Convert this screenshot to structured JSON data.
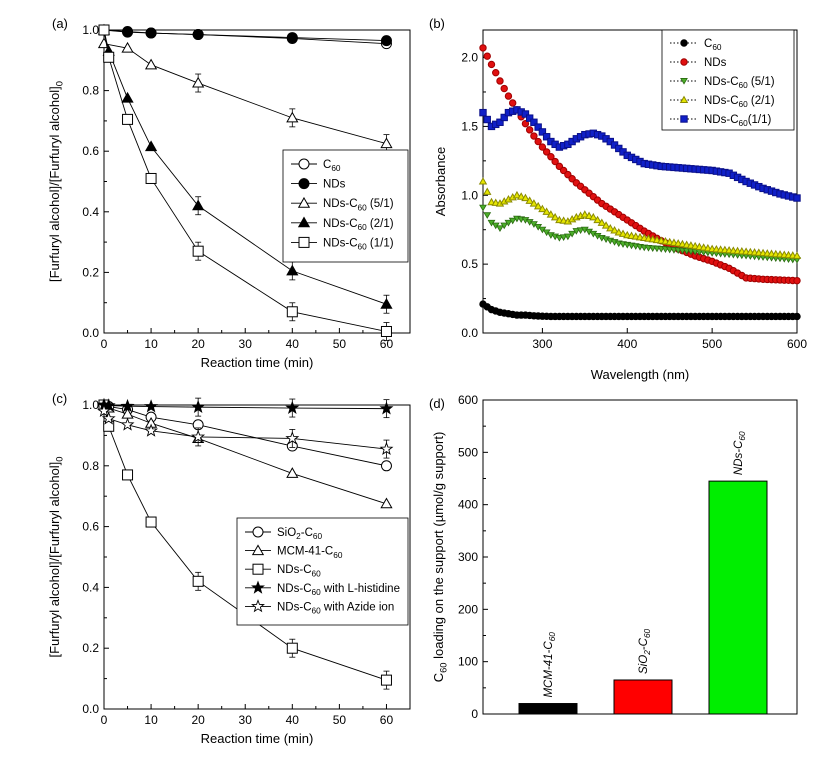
{
  "chart_data": [
    {
      "panel": "(a)",
      "type": "line",
      "xlabel": "Reaction time (min)",
      "ylabel": "[Furfuryl alcohol]/[Furfuryl alcohol]",
      "ylabel_sub": "0",
      "xlim": [
        0,
        65
      ],
      "ylim": [
        0,
        1.0
      ],
      "xticks": [
        "0",
        "10",
        "20",
        "30",
        "40",
        "50",
        "60"
      ],
      "yticks": [
        "0.0",
        "0.2",
        "0.4",
        "0.6",
        "0.8",
        "1.0"
      ],
      "legend_position": "center-right",
      "x": [
        0,
        5,
        10,
        20,
        40,
        60
      ],
      "series": [
        {
          "name": "C",
          "sub": "60",
          "suffix": "",
          "marker": "circle-open",
          "x": [
            0,
            5,
            10,
            20,
            40,
            60
          ],
          "values": [
            1.0,
            0.993,
            0.99,
            0.985,
            0.972,
            0.955
          ]
        },
        {
          "name": "NDs",
          "sub": "",
          "suffix": "",
          "marker": "circle-filled",
          "x": [
            0,
            5,
            10,
            20,
            40,
            60
          ],
          "values": [
            1.0,
            0.995,
            0.99,
            0.985,
            0.975,
            0.965
          ]
        },
        {
          "name": "NDs-C",
          "sub": "60",
          "suffix": " (5/1)",
          "marker": "triangle-open",
          "x": [
            0,
            5,
            10,
            20,
            40,
            60
          ],
          "values": [
            0.955,
            0.94,
            0.885,
            0.825,
            0.71,
            0.625
          ]
        },
        {
          "name": "NDs-C",
          "sub": "60",
          "suffix": " (2/1)",
          "marker": "triangle-filled",
          "x": [
            0,
            1,
            5,
            10,
            20,
            40,
            60
          ],
          "values": [
            1.0,
            0.93,
            0.775,
            0.615,
            0.42,
            0.205,
            0.095
          ]
        },
        {
          "name": "NDs-C",
          "sub": "60",
          "suffix": " (1/1)",
          "marker": "square-open",
          "x": [
            0,
            1,
            5,
            10,
            20,
            40,
            60
          ],
          "values": [
            1.0,
            0.91,
            0.705,
            0.51,
            0.27,
            0.07,
            0.005
          ]
        }
      ]
    },
    {
      "panel": "(b)",
      "type": "scatter",
      "xlabel": "Wavelength (nm)",
      "ylabel": "Absorbance",
      "xlim": [
        230,
        600
      ],
      "ylim": [
        0,
        2.2
      ],
      "xticks": [
        "300",
        "400",
        "500",
        "600"
      ],
      "yticks": [
        "0.0",
        "0.5",
        "1.0",
        "1.5",
        "2.0"
      ],
      "legend_position": "top-right",
      "wavelengths": [
        230,
        240,
        250,
        260,
        270,
        280,
        290,
        300,
        310,
        320,
        330,
        340,
        350,
        360,
        370,
        380,
        390,
        400,
        420,
        440,
        460,
        480,
        500,
        520,
        540,
        560,
        580,
        600
      ],
      "series": [
        {
          "name": "C",
          "sub": "60",
          "suffix": "",
          "marker": "circle",
          "color": "#000000",
          "values": [
            0.21,
            0.17,
            0.15,
            0.14,
            0.13,
            0.13,
            0.125,
            0.122,
            0.12,
            0.12,
            0.12,
            0.12,
            0.12,
            0.12,
            0.12,
            0.12,
            0.12,
            0.12,
            0.12,
            0.12,
            0.12,
            0.12,
            0.12,
            0.12,
            0.12,
            0.12,
            0.12,
            0.12
          ]
        },
        {
          "name": "NDs",
          "sub": "",
          "suffix": "",
          "marker": "circle",
          "color": "#e01010",
          "values": [
            2.07,
            1.95,
            1.83,
            1.72,
            1.62,
            1.52,
            1.43,
            1.35,
            1.28,
            1.21,
            1.15,
            1.09,
            1.04,
            0.99,
            0.94,
            0.9,
            0.86,
            0.82,
            0.74,
            0.67,
            0.61,
            0.56,
            0.52,
            0.47,
            0.4,
            0.39,
            0.385,
            0.38
          ]
        },
        {
          "name": "NDs-C",
          "sub": "60",
          "suffix": " (5/1)",
          "marker": "triangle-down",
          "color": "#4caf2a",
          "values": [
            0.91,
            0.8,
            0.76,
            0.8,
            0.83,
            0.82,
            0.79,
            0.75,
            0.71,
            0.69,
            0.7,
            0.74,
            0.75,
            0.72,
            0.69,
            0.67,
            0.65,
            0.64,
            0.62,
            0.61,
            0.6,
            0.59,
            0.58,
            0.57,
            0.56,
            0.55,
            0.54,
            0.53
          ]
        },
        {
          "name": "NDs-C",
          "sub": "60",
          "suffix": " (2/1)",
          "marker": "triangle-up",
          "color": "#e6e600",
          "values": [
            1.1,
            0.95,
            0.94,
            0.97,
            1.0,
            0.98,
            0.94,
            0.9,
            0.86,
            0.82,
            0.81,
            0.84,
            0.86,
            0.84,
            0.8,
            0.76,
            0.73,
            0.71,
            0.69,
            0.67,
            0.65,
            0.63,
            0.61,
            0.6,
            0.59,
            0.58,
            0.57,
            0.56
          ]
        },
        {
          "name": "NDs-C",
          "sub": "60",
          "suffix": "(1/1)",
          "marker": "square",
          "color": "#1020c8",
          "values": [
            1.6,
            1.5,
            1.53,
            1.6,
            1.62,
            1.59,
            1.53,
            1.46,
            1.39,
            1.35,
            1.37,
            1.41,
            1.44,
            1.45,
            1.43,
            1.39,
            1.34,
            1.29,
            1.23,
            1.21,
            1.2,
            1.19,
            1.18,
            1.16,
            1.1,
            1.05,
            1.01,
            0.98
          ]
        }
      ]
    },
    {
      "panel": "(c)",
      "type": "line",
      "xlabel": "Reaction time (min)",
      "ylabel": "[Furfuryl alcohol]/[Furfuryl alcohol]",
      "ylabel_sub": "0",
      "xlim": [
        0,
        65
      ],
      "ylim": [
        0,
        1.0
      ],
      "xticks": [
        "0",
        "10",
        "20",
        "30",
        "40",
        "50",
        "60"
      ],
      "yticks": [
        "0.0",
        "0.2",
        "0.4",
        "0.6",
        "0.8",
        "1.0"
      ],
      "legend_position": "bottom-right",
      "series": [
        {
          "name": "SiO",
          "sub": "2",
          "mid": "-C",
          "sub2": "60",
          "suffix": "",
          "marker": "circle-open",
          "x": [
            0,
            1,
            5,
            10,
            20,
            40,
            60
          ],
          "values": [
            1.0,
            0.995,
            0.985,
            0.96,
            0.935,
            0.865,
            0.8
          ]
        },
        {
          "name": "MCM-41-C",
          "sub": "60",
          "suffix": "",
          "marker": "triangle-open",
          "x": [
            0,
            1,
            5,
            10,
            20,
            40,
            60
          ],
          "values": [
            1.0,
            0.99,
            0.97,
            0.94,
            0.89,
            0.775,
            0.675
          ]
        },
        {
          "name": "NDs-C",
          "sub": "60",
          "suffix": "",
          "marker": "square-open",
          "x": [
            0,
            1,
            5,
            10,
            20,
            40,
            60
          ],
          "values": [
            1.0,
            0.93,
            0.77,
            0.615,
            0.42,
            0.2,
            0.095
          ]
        },
        {
          "name": "NDs-C",
          "sub": "60",
          "suffix": " with L-histidine",
          "marker": "star-filled",
          "x": [
            0,
            1,
            5,
            10,
            20,
            40,
            60
          ],
          "values": [
            1.0,
            0.998,
            0.996,
            0.995,
            0.993,
            0.99,
            0.988
          ]
        },
        {
          "name": "NDs-C",
          "sub": "60",
          "suffix": " with Azide ion",
          "marker": "star-open",
          "x": [
            0,
            1,
            5,
            10,
            20,
            40,
            60
          ],
          "values": [
            0.98,
            0.955,
            0.935,
            0.915,
            0.895,
            0.89,
            0.855
          ]
        }
      ]
    },
    {
      "panel": "(d)",
      "type": "bar",
      "ylabel_pre": "C",
      "ylabel_sub": "60",
      "ylabel_post": " loading on the support (µmol/g support)",
      "ylim": [
        0,
        600
      ],
      "yticks": [
        "0",
        "100",
        "200",
        "300",
        "400",
        "500",
        "600"
      ],
      "categories": [
        {
          "name": "MCM-41-C",
          "sub": "60",
          "pre": "",
          "presub": ""
        },
        {
          "name": "-C",
          "sub": "60",
          "pre": "SiO",
          "presub": "2"
        },
        {
          "name": "NDs-C",
          "sub": "60",
          "pre": "",
          "presub": ""
        }
      ],
      "values": [
        20,
        65,
        445
      ],
      "colors": [
        "#000000",
        "#ff0000",
        "#00ee00"
      ]
    }
  ]
}
